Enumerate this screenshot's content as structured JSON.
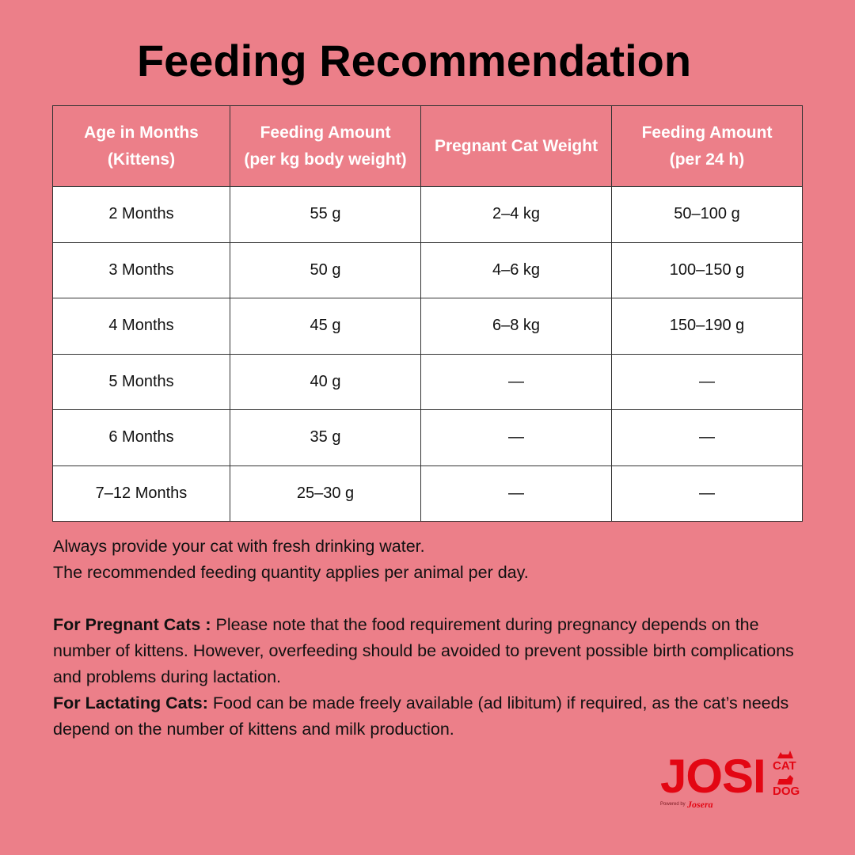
{
  "title": "Feeding Recommendation",
  "table": {
    "header": [
      [
        "Age in Months",
        "(Kittens)"
      ],
      [
        "Feeding Amount",
        "(per kg body weight)"
      ],
      [
        "Pregnant Cat Weight"
      ],
      [
        "Feeding Amount",
        "(per 24 h)"
      ]
    ],
    "rows": [
      [
        "2 Months",
        "55 g",
        "2–4 kg",
        "50–100 g"
      ],
      [
        "3 Months",
        "50 g",
        "4–6 kg",
        "100–150 g"
      ],
      [
        "4 Months",
        "45 g",
        "6–8 kg",
        "150–190 g"
      ],
      [
        "5 Months",
        "40 g",
        "—",
        "—"
      ],
      [
        "6 Months",
        "35 g",
        "—",
        "—"
      ],
      [
        "7–12 Months",
        "25–30 g",
        "—",
        "—"
      ]
    ]
  },
  "notes": {
    "lines": [
      "Always provide your cat with fresh drinking water.",
      "The recommended feeding quantity applies per animal per day."
    ],
    "pregnant": {
      "label": "For Pregnant Cats :",
      "text": "Please note that the food requirement during pregnancy depends on the number of kittens. However, overfeeding should be avoided to prevent possible birth complications and problems during lactation."
    },
    "lactating": {
      "label": "For Lactating Cats:",
      "text": "Food can be made freely available (ad libitum) if required, as the cat’s needs depend on the number of kittens and milk production."
    }
  },
  "logo": {
    "brand": "JOSI",
    "top": "CAT",
    "bottom": "DOG",
    "powered": "Powered by",
    "maker": "Josera"
  }
}
